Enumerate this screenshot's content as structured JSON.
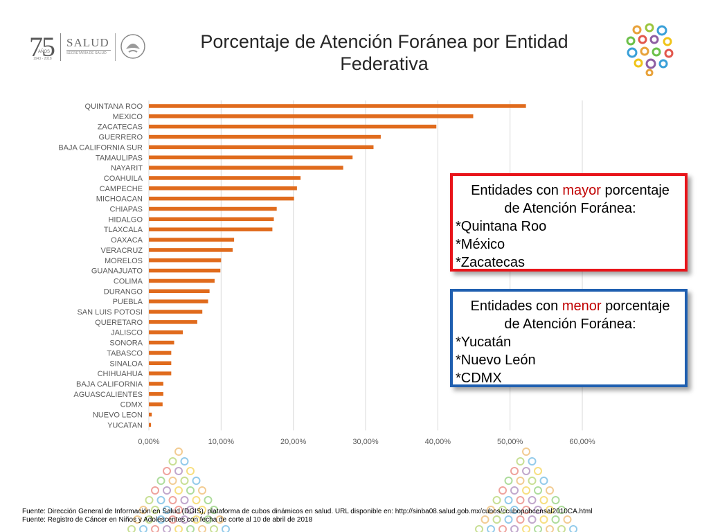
{
  "header": {
    "logo_number": "75",
    "logo_anos": "AÑOS",
    "logo_years": "1943 - 2018",
    "logo_salud": "SALUD",
    "logo_secretaria": "SECRETARÍA DE SALUD"
  },
  "title": "Porcentaje de Atención Foránea por Entidad Federativa",
  "chart_data": {
    "type": "bar",
    "orientation": "horizontal",
    "title": "",
    "xlabel": "",
    "ylabel": "",
    "bar_color": "#e06b1d",
    "grid": true,
    "xlim": [
      0,
      60
    ],
    "x_ticks": [
      "0,00%",
      "10,00%",
      "20,00%",
      "30,00%",
      "40,00%",
      "50,00%",
      "60,00%"
    ],
    "categories": [
      "QUINTANA ROO",
      "MEXICO",
      "ZACATECAS",
      "GUERRERO",
      "BAJA CALIFORNIA SUR",
      "TAMAULIPAS",
      "NAYARIT",
      "COAHUILA",
      "CAMPECHE",
      "MICHOACAN",
      "CHIAPAS",
      "HIDALGO",
      "TLAXCALA",
      "OAXACA",
      "VERACRUZ",
      "MORELOS",
      "GUANAJUATO",
      "COLIMA",
      "DURANGO",
      "PUEBLA",
      "SAN  LUIS POTOSI",
      "QUERETARO",
      "JALISCO",
      "SONORA",
      "TABASCO",
      "SINALOA",
      "CHIHUAHUA",
      "BAJA CALIFORNIA",
      "AGUASCALIENTES",
      "CDMX",
      "NUEVO LEON",
      "YUCATAN"
    ],
    "values": [
      52.2,
      44.9,
      39.8,
      32.1,
      31.1,
      28.2,
      26.9,
      21.0,
      20.5,
      20.1,
      17.7,
      17.3,
      17.1,
      11.8,
      11.6,
      10.0,
      9.9,
      9.1,
      8.4,
      8.2,
      7.4,
      6.7,
      4.7,
      3.5,
      3.1,
      3.1,
      3.1,
      2.0,
      2.0,
      1.9,
      0.4,
      0.3
    ]
  },
  "box_mayor": {
    "prefix": "Entidades con ",
    "highlight": "mayor",
    "suffix": " porcentaje",
    "line2": "de Atención Foránea:",
    "items": [
      "*Quintana Roo",
      "*México",
      "*Zacatecas"
    ]
  },
  "box_menor": {
    "prefix": "Entidades con ",
    "highlight": "menor",
    "suffix": " porcentaje",
    "line2": "de Atención Foránea:",
    "items": [
      "*Yucatán",
      "*Nuevo León",
      "*CDMX"
    ]
  },
  "footer": {
    "line1": "Fuente: Dirección General de Información en Salud (DGIS), plataforma de cubos dinámicos en salud. URL disponible en: http://sinba08.salud.gob.mx/cubos/ccubopobcensal2010CA.html",
    "line2": "Fuente: Registro de Cáncer en Niños y Adolescentes con fecha de corte al 10 de abril de 2018"
  },
  "colors": {
    "bar": "#e06b1d",
    "box_red_border": "#e8141a",
    "box_blue_border": "#1f5fb0",
    "highlight_text": "#c00000"
  }
}
